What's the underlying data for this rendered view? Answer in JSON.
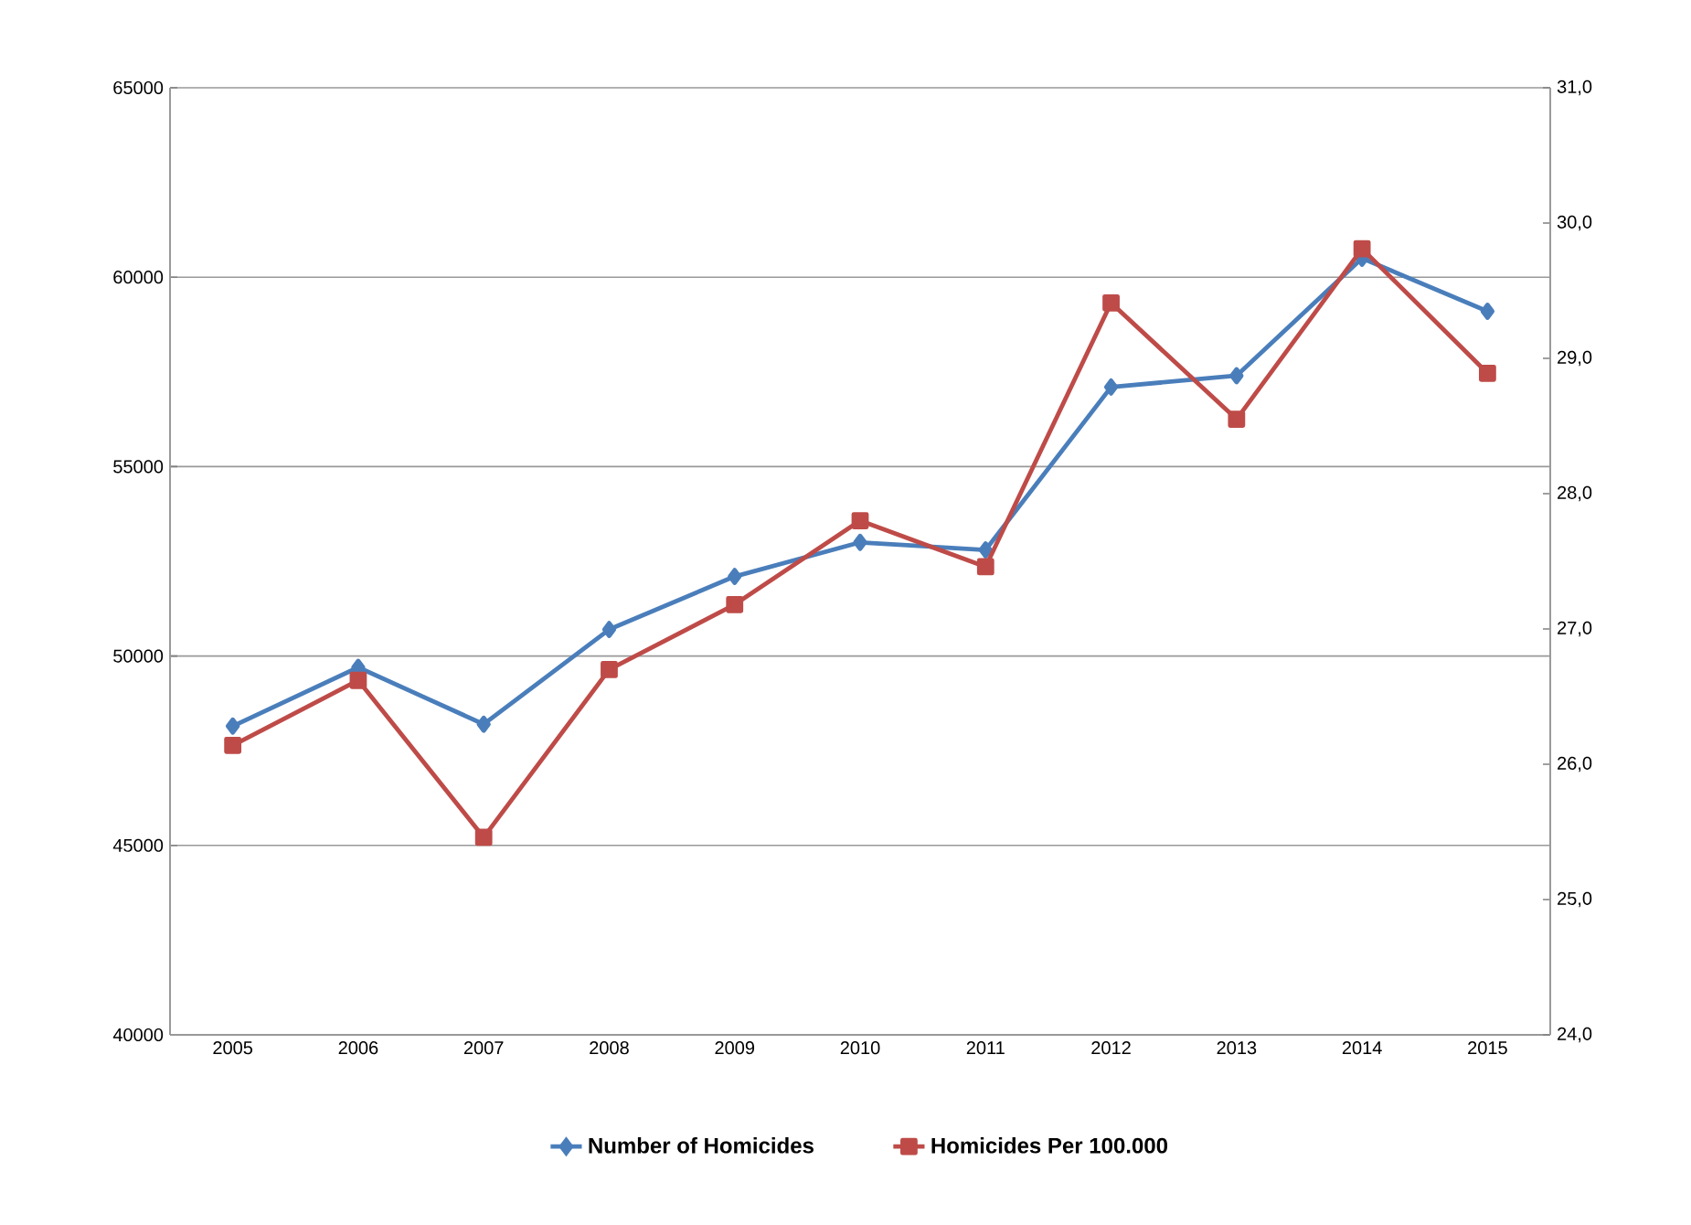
{
  "chart_data": {
    "type": "line",
    "categories": [
      "2005",
      "2006",
      "2007",
      "2008",
      "2009",
      "2010",
      "2011",
      "2012",
      "2013",
      "2014",
      "2015"
    ],
    "series": [
      {
        "name": "Number of Homicides",
        "color": "#4a7ebb",
        "marker": "diamond",
        "values": [
          48150,
          49700,
          48200,
          50700,
          52100,
          53000,
          52800,
          57100,
          57400,
          60500,
          59100
        ]
      },
      {
        "name": "Homicides Per 100.000",
        "color": "#be4b48",
        "marker": "square",
        "axis": "y2",
        "values": [
          26.14,
          26.62,
          25.46,
          26.7,
          27.18,
          27.8,
          27.46,
          29.41,
          28.55,
          29.81,
          28.89
        ]
      }
    ],
    "ylim": [
      40000,
      65000
    ],
    "yticks": [
      40000,
      45000,
      50000,
      55000,
      60000,
      65000
    ],
    "y2lim": [
      24,
      31
    ],
    "y2ticks": [
      {
        "value": 24,
        "label": "24,0"
      },
      {
        "value": 25,
        "label": "25,0"
      },
      {
        "value": 26,
        "label": "26,0"
      },
      {
        "value": 27,
        "label": "27,0"
      },
      {
        "value": 28,
        "label": "28,0"
      },
      {
        "value": 29,
        "label": "29,0"
      },
      {
        "value": 30,
        "label": "30,0"
      },
      {
        "value": 31,
        "label": "31,0"
      }
    ],
    "grid": "y",
    "legend": "bottom",
    "line_style": "solid"
  }
}
